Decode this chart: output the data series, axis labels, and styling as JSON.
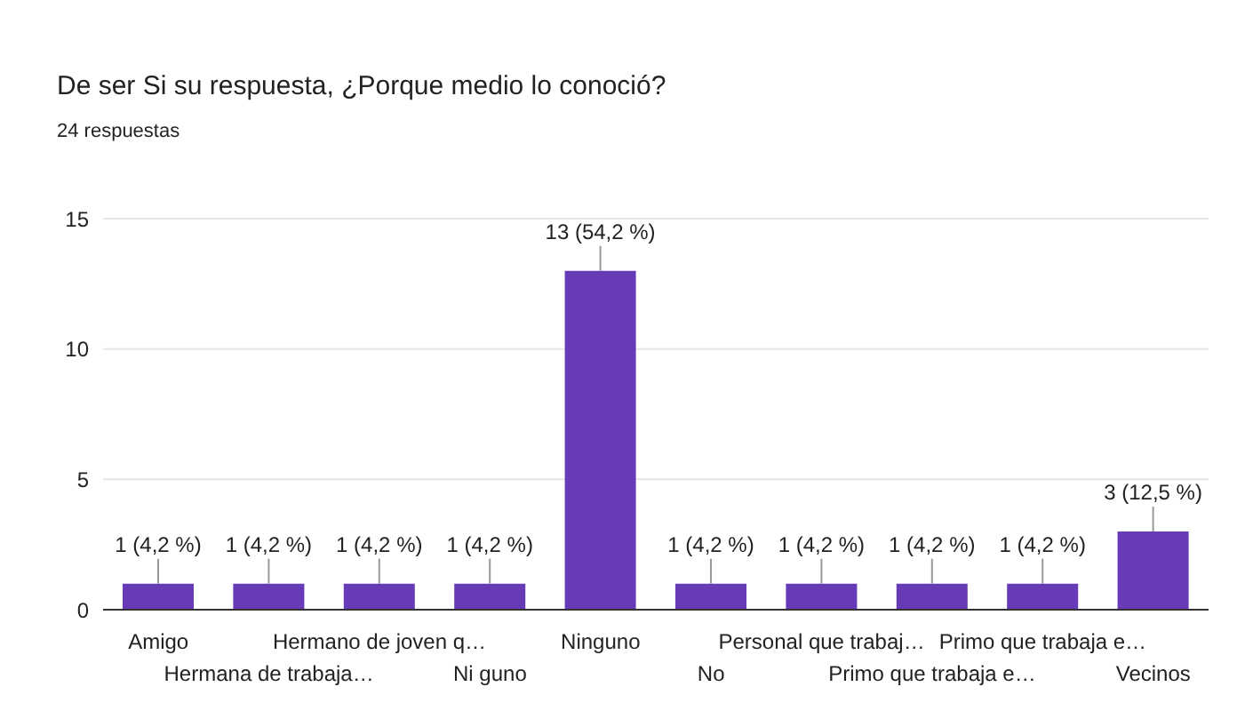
{
  "chart_data": {
    "type": "bar",
    "title": "De ser Si su respuesta, ¿Porque medio lo conoció?",
    "subtitle": "24 respuestas",
    "categories": [
      "Amigo",
      "Hermana de trabaja…",
      "Hermano de joven q…",
      "Ni guno",
      "Ninguno",
      "No",
      "Personal que trabaj…",
      "Primo que trabaja e…",
      "Primo que trabaja e…",
      "Vecinos"
    ],
    "values": [
      1,
      1,
      1,
      1,
      13,
      1,
      1,
      1,
      1,
      3
    ],
    "value_labels": [
      "1 (4,2 %)",
      "1 (4,2 %)",
      "1 (4,2 %)",
      "1 (4,2 %)",
      "13 (54,2 %)",
      "1 (4,2 %)",
      "1 (4,2 %)",
      "1 (4,2 %)",
      "1 (4,2 %)",
      "3 (12,5 %)"
    ],
    "color": "#673ab7",
    "ylim": [
      0,
      15
    ],
    "yticks": [
      0,
      5,
      10,
      15
    ],
    "grid": "y"
  }
}
